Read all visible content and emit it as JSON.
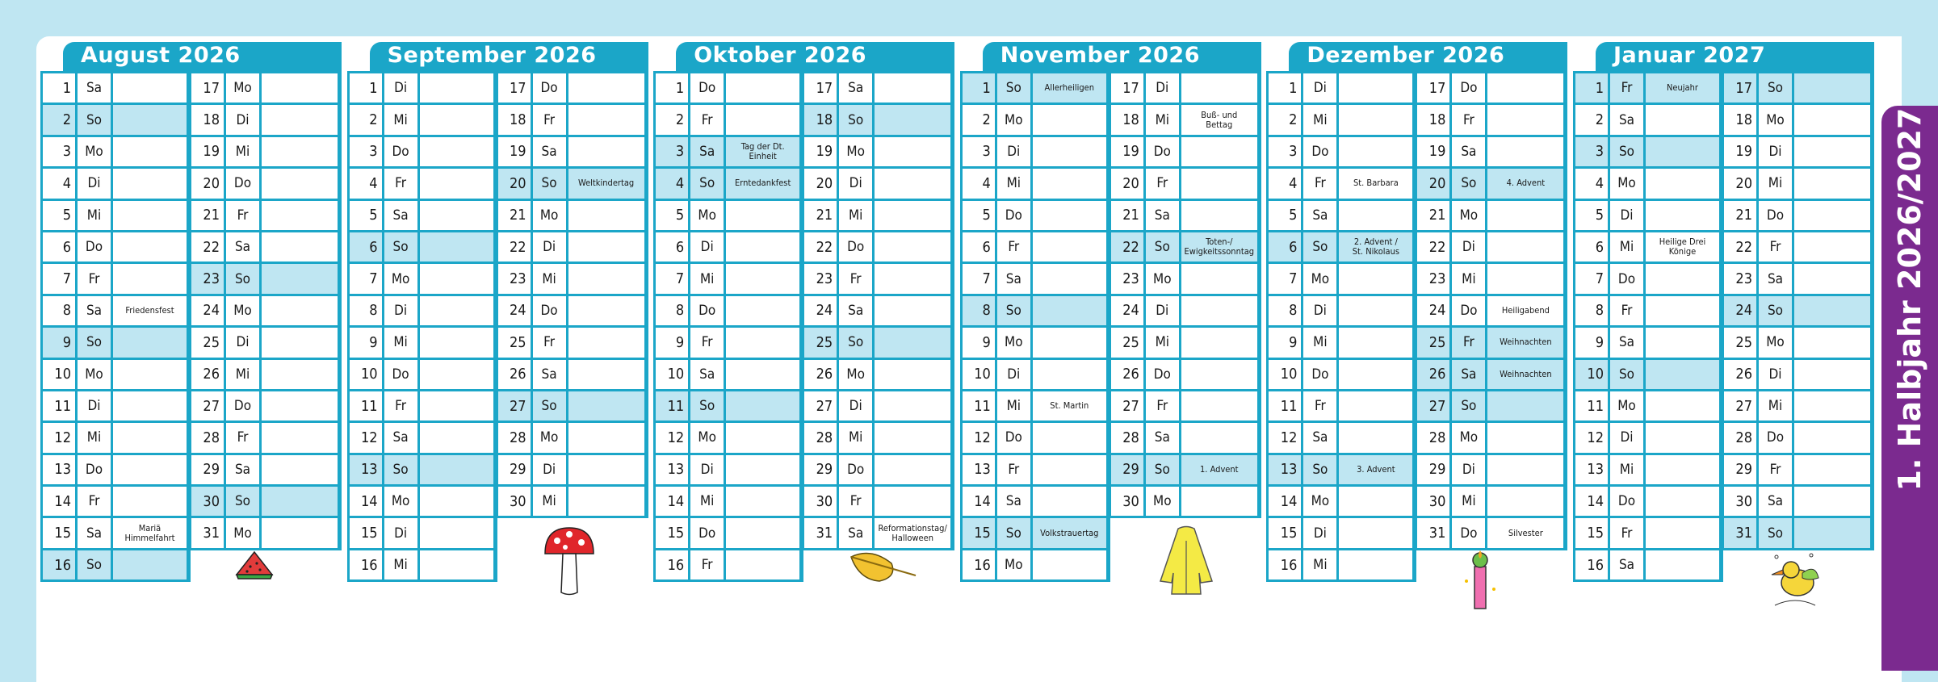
{
  "side_label": "1. Halbjahr 2026/2027",
  "colors": {
    "accent": "#1ba6c8",
    "highlight": "#bfe6f2",
    "band": "#7b2a8f",
    "background": "#bfe6f2"
  },
  "months": [
    {
      "title": "August 2026",
      "illustration": "watermelon-icon",
      "days": [
        [
          "1",
          "Sa",
          "",
          0
        ],
        [
          "2",
          "So",
          "",
          1
        ],
        [
          "3",
          "Mo",
          "",
          0
        ],
        [
          "4",
          "Di",
          "",
          0
        ],
        [
          "5",
          "Mi",
          "",
          0
        ],
        [
          "6",
          "Do",
          "",
          0
        ],
        [
          "7",
          "Fr",
          "",
          0
        ],
        [
          "8",
          "Sa",
          "Friedensfest",
          0
        ],
        [
          "9",
          "So",
          "",
          1
        ],
        [
          "10",
          "Mo",
          "",
          0
        ],
        [
          "11",
          "Di",
          "",
          0
        ],
        [
          "12",
          "Mi",
          "",
          0
        ],
        [
          "13",
          "Do",
          "",
          0
        ],
        [
          "14",
          "Fr",
          "",
          0
        ],
        [
          "15",
          "Sa",
          "Mariä\nHimmelfahrt",
          0
        ],
        [
          "16",
          "So",
          "",
          1
        ],
        [
          "17",
          "Mo",
          "",
          0
        ],
        [
          "18",
          "Di",
          "",
          0
        ],
        [
          "19",
          "Mi",
          "",
          0
        ],
        [
          "20",
          "Do",
          "",
          0
        ],
        [
          "21",
          "Fr",
          "",
          0
        ],
        [
          "22",
          "Sa",
          "",
          0
        ],
        [
          "23",
          "So",
          "",
          1
        ],
        [
          "24",
          "Mo",
          "",
          0
        ],
        [
          "25",
          "Di",
          "",
          0
        ],
        [
          "26",
          "Mi",
          "",
          0
        ],
        [
          "27",
          "Do",
          "",
          0
        ],
        [
          "28",
          "Fr",
          "",
          0
        ],
        [
          "29",
          "Sa",
          "",
          0
        ],
        [
          "30",
          "So",
          "",
          1
        ],
        [
          "31",
          "Mo",
          "",
          0
        ]
      ]
    },
    {
      "title": "September 2026",
      "illustration": "mushroom-icon",
      "days": [
        [
          "1",
          "Di",
          "",
          0
        ],
        [
          "2",
          "Mi",
          "",
          0
        ],
        [
          "3",
          "Do",
          "",
          0
        ],
        [
          "4",
          "Fr",
          "",
          0
        ],
        [
          "5",
          "Sa",
          "",
          0
        ],
        [
          "6",
          "So",
          "",
          1
        ],
        [
          "7",
          "Mo",
          "",
          0
        ],
        [
          "8",
          "Di",
          "",
          0
        ],
        [
          "9",
          "Mi",
          "",
          0
        ],
        [
          "10",
          "Do",
          "",
          0
        ],
        [
          "11",
          "Fr",
          "",
          0
        ],
        [
          "12",
          "Sa",
          "",
          0
        ],
        [
          "13",
          "So",
          "",
          1
        ],
        [
          "14",
          "Mo",
          "",
          0
        ],
        [
          "15",
          "Di",
          "",
          0
        ],
        [
          "16",
          "Mi",
          "",
          0
        ],
        [
          "17",
          "Do",
          "",
          0
        ],
        [
          "18",
          "Fr",
          "",
          0
        ],
        [
          "19",
          "Sa",
          "",
          0
        ],
        [
          "20",
          "So",
          "Weltkindertag",
          1
        ],
        [
          "21",
          "Mo",
          "",
          0
        ],
        [
          "22",
          "Di",
          "",
          0
        ],
        [
          "23",
          "Mi",
          "",
          0
        ],
        [
          "24",
          "Do",
          "",
          0
        ],
        [
          "25",
          "Fr",
          "",
          0
        ],
        [
          "26",
          "Sa",
          "",
          0
        ],
        [
          "27",
          "So",
          "",
          1
        ],
        [
          "28",
          "Mo",
          "",
          0
        ],
        [
          "29",
          "Di",
          "",
          0
        ],
        [
          "30",
          "Mi",
          "",
          0
        ]
      ]
    },
    {
      "title": "Oktober 2026",
      "illustration": "leaf-icon",
      "days": [
        [
          "1",
          "Do",
          "",
          0
        ],
        [
          "2",
          "Fr",
          "",
          0
        ],
        [
          "3",
          "Sa",
          "Tag der Dt.\nEinheit",
          1
        ],
        [
          "4",
          "So",
          "Erntedankfest",
          1
        ],
        [
          "5",
          "Mo",
          "",
          0
        ],
        [
          "6",
          "Di",
          "",
          0
        ],
        [
          "7",
          "Mi",
          "",
          0
        ],
        [
          "8",
          "Do",
          "",
          0
        ],
        [
          "9",
          "Fr",
          "",
          0
        ],
        [
          "10",
          "Sa",
          "",
          0
        ],
        [
          "11",
          "So",
          "",
          1
        ],
        [
          "12",
          "Mo",
          "",
          0
        ],
        [
          "13",
          "Di",
          "",
          0
        ],
        [
          "14",
          "Mi",
          "",
          0
        ],
        [
          "15",
          "Do",
          "",
          0
        ],
        [
          "16",
          "Fr",
          "",
          0
        ],
        [
          "17",
          "Sa",
          "",
          0
        ],
        [
          "18",
          "So",
          "",
          1
        ],
        [
          "19",
          "Mo",
          "",
          0
        ],
        [
          "20",
          "Di",
          "",
          0
        ],
        [
          "21",
          "Mi",
          "",
          0
        ],
        [
          "22",
          "Do",
          "",
          0
        ],
        [
          "23",
          "Fr",
          "",
          0
        ],
        [
          "24",
          "Sa",
          "",
          0
        ],
        [
          "25",
          "So",
          "",
          1
        ],
        [
          "26",
          "Mo",
          "",
          0
        ],
        [
          "27",
          "Di",
          "",
          0
        ],
        [
          "28",
          "Mi",
          "",
          0
        ],
        [
          "29",
          "Do",
          "",
          0
        ],
        [
          "30",
          "Fr",
          "",
          0
        ],
        [
          "31",
          "Sa",
          "Reformationstag/\nHalloween",
          0
        ]
      ]
    },
    {
      "title": "November 2026",
      "illustration": "raincoat-icon",
      "days": [
        [
          "1",
          "So",
          "Allerheiligen",
          1
        ],
        [
          "2",
          "Mo",
          "",
          0
        ],
        [
          "3",
          "Di",
          "",
          0
        ],
        [
          "4",
          "Mi",
          "",
          0
        ],
        [
          "5",
          "Do",
          "",
          0
        ],
        [
          "6",
          "Fr",
          "",
          0
        ],
        [
          "7",
          "Sa",
          "",
          0
        ],
        [
          "8",
          "So",
          "",
          1
        ],
        [
          "9",
          "Mo",
          "",
          0
        ],
        [
          "10",
          "Di",
          "",
          0
        ],
        [
          "11",
          "Mi",
          "St. Martin",
          0
        ],
        [
          "12",
          "Do",
          "",
          0
        ],
        [
          "13",
          "Fr",
          "",
          0
        ],
        [
          "14",
          "Sa",
          "",
          0
        ],
        [
          "15",
          "So",
          "Volkstrauertag",
          1
        ],
        [
          "16",
          "Mo",
          "",
          0
        ],
        [
          "17",
          "Di",
          "",
          0
        ],
        [
          "18",
          "Mi",
          "Buß- und\nBettag",
          0
        ],
        [
          "19",
          "Do",
          "",
          0
        ],
        [
          "20",
          "Fr",
          "",
          0
        ],
        [
          "21",
          "Sa",
          "",
          0
        ],
        [
          "22",
          "So",
          "Toten-/\nEwigkeitssonntag",
          1
        ],
        [
          "23",
          "Mo",
          "",
          0
        ],
        [
          "24",
          "Di",
          "",
          0
        ],
        [
          "25",
          "Mi",
          "",
          0
        ],
        [
          "26",
          "Do",
          "",
          0
        ],
        [
          "27",
          "Fr",
          "",
          0
        ],
        [
          "28",
          "Sa",
          "",
          0
        ],
        [
          "29",
          "So",
          "1. Advent",
          1
        ],
        [
          "30",
          "Mo",
          "",
          0
        ]
      ]
    },
    {
      "title": "Dezember 2026",
      "illustration": "candle-icon",
      "days": [
        [
          "1",
          "Di",
          "",
          0
        ],
        [
          "2",
          "Mi",
          "",
          0
        ],
        [
          "3",
          "Do",
          "",
          0
        ],
        [
          "4",
          "Fr",
          "St. Barbara",
          0
        ],
        [
          "5",
          "Sa",
          "",
          0
        ],
        [
          "6",
          "So",
          "2. Advent /\nSt. Nikolaus",
          1
        ],
        [
          "7",
          "Mo",
          "",
          0
        ],
        [
          "8",
          "Di",
          "",
          0
        ],
        [
          "9",
          "Mi",
          "",
          0
        ],
        [
          "10",
          "Do",
          "",
          0
        ],
        [
          "11",
          "Fr",
          "",
          0
        ],
        [
          "12",
          "Sa",
          "",
          0
        ],
        [
          "13",
          "So",
          "3. Advent",
          1
        ],
        [
          "14",
          "Mo",
          "",
          0
        ],
        [
          "15",
          "Di",
          "",
          0
        ],
        [
          "16",
          "Mi",
          "",
          0
        ],
        [
          "17",
          "Do",
          "",
          0
        ],
        [
          "18",
          "Fr",
          "",
          0
        ],
        [
          "19",
          "Sa",
          "",
          0
        ],
        [
          "20",
          "So",
          "4. Advent",
          1
        ],
        [
          "21",
          "Mo",
          "",
          0
        ],
        [
          "22",
          "Di",
          "",
          0
        ],
        [
          "23",
          "Mi",
          "",
          0
        ],
        [
          "24",
          "Do",
          "Heiligabend",
          0
        ],
        [
          "25",
          "Fr",
          "Weihnachten",
          1
        ],
        [
          "26",
          "Sa",
          "Weihnachten",
          1
        ],
        [
          "27",
          "So",
          "",
          1
        ],
        [
          "28",
          "Mo",
          "",
          0
        ],
        [
          "29",
          "Di",
          "",
          0
        ],
        [
          "30",
          "Mi",
          "",
          0
        ],
        [
          "31",
          "Do",
          "Silvester",
          0
        ]
      ]
    },
    {
      "title": "Januar 2027",
      "illustration": "bird-icon",
      "days": [
        [
          "1",
          "Fr",
          "Neujahr",
          1
        ],
        [
          "2",
          "Sa",
          "",
          0
        ],
        [
          "3",
          "So",
          "",
          1
        ],
        [
          "4",
          "Mo",
          "",
          0
        ],
        [
          "5",
          "Di",
          "",
          0
        ],
        [
          "6",
          "Mi",
          "Heilige Drei\nKönige",
          0
        ],
        [
          "7",
          "Do",
          "",
          0
        ],
        [
          "8",
          "Fr",
          "",
          0
        ],
        [
          "9",
          "Sa",
          "",
          0
        ],
        [
          "10",
          "So",
          "",
          1
        ],
        [
          "11",
          "Mo",
          "",
          0
        ],
        [
          "12",
          "Di",
          "",
          0
        ],
        [
          "13",
          "Mi",
          "",
          0
        ],
        [
          "14",
          "Do",
          "",
          0
        ],
        [
          "15",
          "Fr",
          "",
          0
        ],
        [
          "16",
          "Sa",
          "",
          0
        ],
        [
          "17",
          "So",
          "",
          1
        ],
        [
          "18",
          "Mo",
          "",
          0
        ],
        [
          "19",
          "Di",
          "",
          0
        ],
        [
          "20",
          "Mi",
          "",
          0
        ],
        [
          "21",
          "Do",
          "",
          0
        ],
        [
          "22",
          "Fr",
          "",
          0
        ],
        [
          "23",
          "Sa",
          "",
          0
        ],
        [
          "24",
          "So",
          "",
          1
        ],
        [
          "25",
          "Mo",
          "",
          0
        ],
        [
          "26",
          "Di",
          "",
          0
        ],
        [
          "27",
          "Mi",
          "",
          0
        ],
        [
          "28",
          "Do",
          "",
          0
        ],
        [
          "29",
          "Fr",
          "",
          0
        ],
        [
          "30",
          "Sa",
          "",
          0
        ],
        [
          "31",
          "So",
          "",
          1
        ]
      ]
    }
  ]
}
